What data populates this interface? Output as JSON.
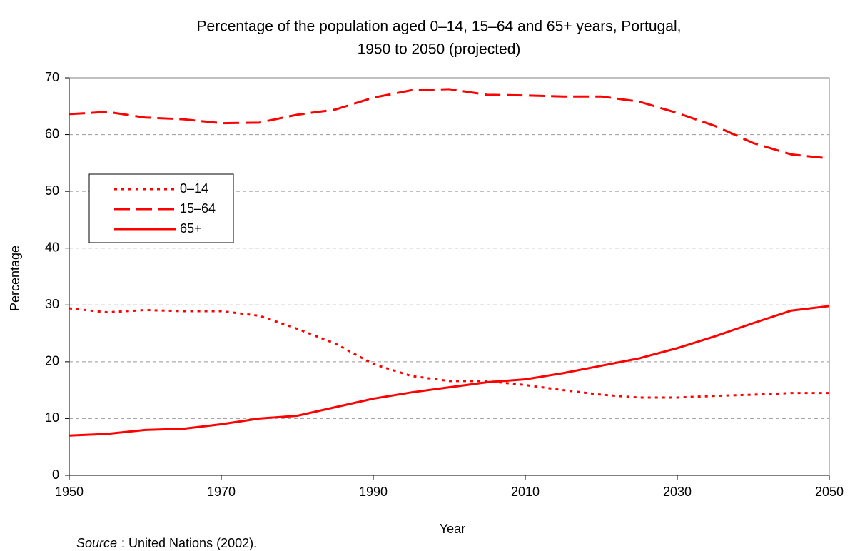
{
  "chart_data": {
    "type": "line",
    "title": "Percentage of the population aged 0–14, 15–64 and 65+ years,  Portugal,",
    "subtitle": "1950 to 2050 (projected)",
    "x_label": "Year",
    "y_label": "Percentage",
    "note_italic": "Source",
    "note": ": United Nations (2002).",
    "x": [
      1950,
      1955,
      1960,
      1965,
      1970,
      1975,
      1980,
      1985,
      1990,
      1995,
      2000,
      2005,
      2010,
      2015,
      2020,
      2025,
      2030,
      2035,
      2040,
      2045,
      2050
    ],
    "series": [
      {
        "name": "0–14",
        "color": "#ff0000",
        "dash": "dotted",
        "values": [
          29.4,
          28.7,
          29.1,
          28.9,
          28.9,
          28.1,
          25.8,
          23.2,
          19.6,
          17.5,
          16.6,
          16.6,
          15.9,
          15.0,
          14.2,
          13.7,
          13.7,
          14.0,
          14.2,
          14.5,
          14.5
        ]
      },
      {
        "name": "15–64",
        "color": "#ff0000",
        "dash": "dashed",
        "values": [
          63.6,
          64.0,
          63.0,
          62.7,
          62.0,
          62.1,
          63.5,
          64.4,
          66.5,
          67.8,
          68.0,
          67.0,
          66.9,
          66.7,
          66.7,
          65.8,
          63.8,
          61.5,
          58.5,
          56.5,
          55.8
        ]
      },
      {
        "name": "65+",
        "color": "#ff0000",
        "dash": "solid",
        "values": [
          7.0,
          7.3,
          8.0,
          8.2,
          9.0,
          10.0,
          10.5,
          12.0,
          13.5,
          14.6,
          15.5,
          16.4,
          16.9,
          18.0,
          19.3,
          20.6,
          22.4,
          24.5,
          26.8,
          29.0,
          29.8
        ]
      }
    ],
    "xlim": [
      1950,
      2050
    ],
    "xticks": [
      1950,
      1970,
      1990,
      2010,
      2030,
      2050
    ],
    "ylim": [
      0,
      70
    ],
    "yticks": [
      0,
      10,
      20,
      30,
      40,
      50,
      60,
      70
    ],
    "grid": true,
    "legend": "upper left"
  }
}
